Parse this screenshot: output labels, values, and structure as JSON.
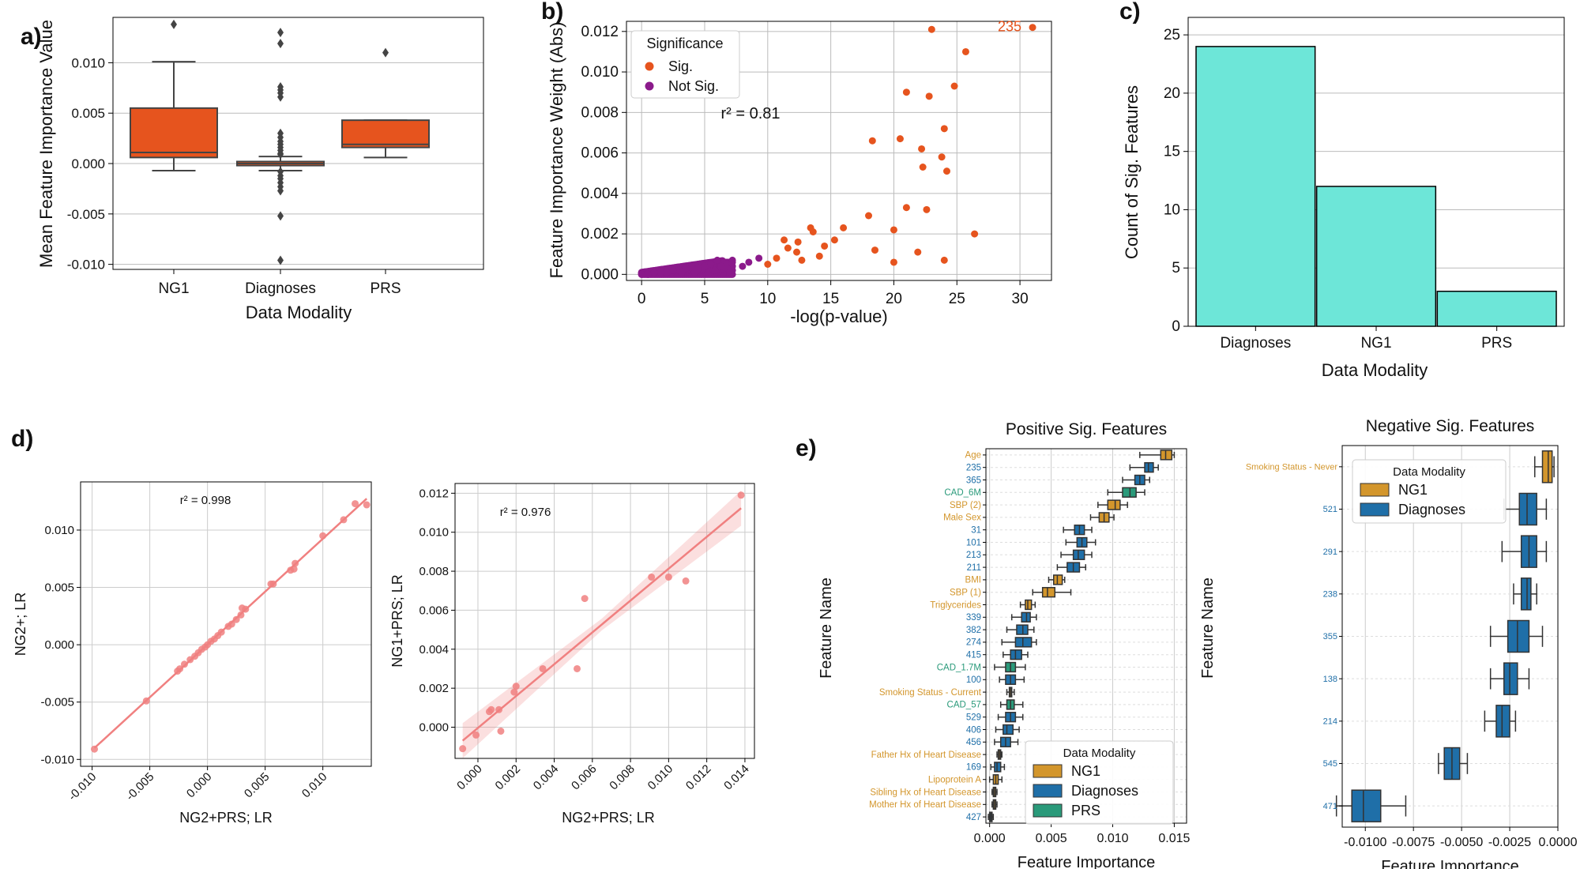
{
  "colors": {
    "orange": "#e6541e",
    "purple": "#8b1a8b",
    "teal": "#6de6d8",
    "salmon": "#f08080",
    "ng1": "#d3962c",
    "diagnoses": "#1f6fa8",
    "prs": "#2a9a7a",
    "grid": "#bbbbbb",
    "box_line": "#444444"
  },
  "chart_data": [
    {
      "panel": "a)",
      "type": "box",
      "xlabel": "Data Modality",
      "ylabel": "Mean Feature Importance Value",
      "categories": [
        "NG1",
        "Diagnoses",
        "PRS"
      ],
      "yticks": [
        -0.01,
        -0.005,
        0.0,
        0.005,
        0.01
      ],
      "ytick_labels": [
        "-0.010",
        "-0.005",
        "0.000",
        "0.005",
        "0.010"
      ],
      "ylim": [
        -0.0105,
        0.0145
      ],
      "boxes": [
        {
          "name": "NG1",
          "q1": 0.0006,
          "median": 0.0011,
          "q3": 0.0055,
          "whisker_low": -0.0007,
          "whisker_high": 0.0101,
          "outliers": [
            0.0138
          ]
        },
        {
          "name": "Diagnoses",
          "q1": -0.0002,
          "median": 0.0,
          "q3": 0.0002,
          "whisker_low": -0.0007,
          "whisker_high": 0.0007,
          "outliers": [
            0.013,
            0.0119,
            0.0076,
            0.0073,
            0.007,
            0.0066,
            0.003,
            0.0026,
            0.0022,
            0.0019,
            0.0016,
            0.0013,
            0.001,
            0.0009,
            -0.0008,
            -0.0012,
            -0.0015,
            -0.0019,
            -0.0023,
            -0.0027,
            -0.0052,
            -0.0096
          ]
        },
        {
          "name": "PRS",
          "q1": 0.0016,
          "median": 0.0019,
          "q3": 0.0043,
          "whisker_low": 0.0006,
          "whisker_high": 0.0043,
          "outliers": [
            0.011
          ]
        }
      ]
    },
    {
      "panel": "b)",
      "type": "scatter",
      "xlabel": "-log(p-value)",
      "ylabel": "Feature Importance Weight (Abs)",
      "xticks": [
        0,
        5,
        10,
        15,
        20,
        25,
        30
      ],
      "xtick_labels": [
        "0",
        "5",
        "10",
        "15",
        "20",
        "25",
        "30"
      ],
      "yticks": [
        0,
        0.002,
        0.004,
        0.006,
        0.008,
        0.01,
        0.012
      ],
      "ytick_labels": [
        "0.000",
        "0.002",
        "0.004",
        "0.006",
        "0.008",
        "0.010",
        "0.012"
      ],
      "xlim": [
        -1.2,
        32.5
      ],
      "ylim": [
        -0.0003,
        0.0125
      ],
      "legend_title": "Significance",
      "legend": [
        "Sig.",
        "Not Sig."
      ],
      "annotation": "r² = 0.81",
      "point_label": "235",
      "sig_points": [
        [
          31.0,
          0.0122
        ],
        [
          23.0,
          0.0121
        ],
        [
          25.7,
          0.011
        ],
        [
          24.8,
          0.0093
        ],
        [
          21.0,
          0.009
        ],
        [
          22.8,
          0.0088
        ],
        [
          24.0,
          0.0072
        ],
        [
          18.3,
          0.0066
        ],
        [
          20.5,
          0.0067
        ],
        [
          22.2,
          0.0062
        ],
        [
          23.8,
          0.0058
        ],
        [
          22.3,
          0.0053
        ],
        [
          24.2,
          0.0051
        ],
        [
          21.0,
          0.0033
        ],
        [
          22.6,
          0.0032
        ],
        [
          18.0,
          0.0029
        ],
        [
          20.0,
          0.0022
        ],
        [
          26.4,
          0.002
        ],
        [
          16.0,
          0.0023
        ],
        [
          13.4,
          0.0023
        ],
        [
          13.6,
          0.0021
        ],
        [
          15.3,
          0.0017
        ],
        [
          11.3,
          0.0017
        ],
        [
          12.4,
          0.0016
        ],
        [
          14.5,
          0.0014
        ],
        [
          11.6,
          0.0013
        ],
        [
          18.5,
          0.0012
        ],
        [
          21.9,
          0.0011
        ],
        [
          12.3,
          0.0011
        ],
        [
          14.1,
          0.0009
        ],
        [
          10.7,
          0.0008
        ],
        [
          12.7,
          0.0007
        ],
        [
          24.0,
          0.0007
        ],
        [
          20.0,
          0.0006
        ],
        [
          10.0,
          0.0005
        ]
      ],
      "nonsig_points": [
        [
          9.3,
          0.0008
        ],
        [
          8.5,
          0.0006
        ],
        [
          8.0,
          0.0004
        ],
        [
          7.2,
          0.0007
        ],
        [
          6.6,
          0.0006
        ],
        [
          6.0,
          0.0007
        ],
        [
          5.5,
          0.0005
        ],
        [
          5.0,
          0.0004
        ],
        [
          4.5,
          0.0003
        ],
        [
          4.0,
          0.0003
        ],
        [
          3.5,
          0.0003
        ],
        [
          3.0,
          0.0002
        ],
        [
          2.5,
          0.0002
        ],
        [
          2.0,
          0.0001
        ],
        [
          1.5,
          0.0001
        ],
        [
          1.0,
          0.0001
        ],
        [
          0.5,
          0.0
        ],
        [
          0.0,
          0.0
        ],
        [
          6.8,
          0.0003
        ],
        [
          7.0,
          0.0001
        ],
        [
          5.8,
          0.0002
        ],
        [
          6.3,
          0.0004
        ],
        [
          3.2,
          0.0001
        ],
        [
          4.2,
          0.0001
        ]
      ]
    },
    {
      "panel": "c)",
      "type": "bar",
      "xlabel": "Data Modality",
      "ylabel": "Count of Sig. Features",
      "categories": [
        "Diagnoses",
        "NG1",
        "PRS"
      ],
      "values": [
        24,
        12,
        3
      ],
      "yticks": [
        0,
        5,
        10,
        15,
        20,
        25
      ],
      "ylim": [
        0,
        26.5
      ]
    },
    {
      "panel": "d)",
      "type": "scatter",
      "xlabel": "NG2+PRS; LR",
      "ylabel": "NG2+; LR",
      "annotation": "r² = 0.998",
      "xticks": [
        -0.01,
        -0.005,
        0.0,
        0.005,
        0.01
      ],
      "xtick_labels": [
        "-0.010",
        "-0.005",
        "0.000",
        "0.005",
        "0.010"
      ],
      "yticks": [
        -0.01,
        -0.005,
        0.0,
        0.005,
        0.01
      ],
      "ytick_labels": [
        "-0.010",
        "-0.005",
        "0.000",
        "0.005",
        "0.010"
      ],
      "xlim": [
        -0.011,
        0.0142
      ],
      "ylim": [
        -0.0106,
        0.0142
      ],
      "points": [
        [
          -0.0098,
          -0.0091
        ],
        [
          -0.0053,
          -0.0049
        ],
        [
          -0.0026,
          -0.0023
        ],
        [
          -0.0024,
          -0.0021
        ],
        [
          -0.002,
          -0.0017
        ],
        [
          -0.0015,
          -0.0013
        ],
        [
          -0.0011,
          -0.001
        ],
        [
          -0.0008,
          -0.0007
        ],
        [
          -0.0005,
          -0.0004
        ],
        [
          -0.0002,
          -0.0002
        ],
        [
          0.0,
          0.0
        ],
        [
          0.0003,
          0.0003
        ],
        [
          0.0006,
          0.0005
        ],
        [
          0.0009,
          0.0008
        ],
        [
          0.0012,
          0.0011
        ],
        [
          0.0018,
          0.0016
        ],
        [
          0.0021,
          0.0018
        ],
        [
          0.0025,
          0.0022
        ],
        [
          0.0029,
          0.0026
        ],
        [
          0.003,
          0.0032
        ],
        [
          0.0033,
          0.0031
        ],
        [
          0.0055,
          0.0053
        ],
        [
          0.0057,
          0.0053
        ],
        [
          0.0072,
          0.0065
        ],
        [
          0.0075,
          0.0066
        ],
        [
          0.0076,
          0.0071
        ],
        [
          0.01,
          0.0095
        ],
        [
          0.0118,
          0.0109
        ],
        [
          0.0128,
          0.0123
        ],
        [
          0.0138,
          0.0122
        ]
      ]
    },
    {
      "panel": "d2",
      "type": "scatter",
      "xlabel": "NG2+PRS; LR",
      "ylabel": "NG1+PRS; LR",
      "annotation": "r² = 0.976",
      "xticks": [
        0.0,
        0.002,
        0.004,
        0.006,
        0.008,
        0.01,
        0.012,
        0.014
      ],
      "xtick_labels": [
        "0.000",
        "0.002",
        "0.004",
        "0.006",
        "0.008",
        "0.010",
        "0.012",
        "0.014"
      ],
      "yticks": [
        0.0,
        0.002,
        0.004,
        0.006,
        0.008,
        0.01,
        0.012
      ],
      "ytick_labels": [
        "0.000",
        "0.002",
        "0.004",
        "0.006",
        "0.008",
        "0.010",
        "0.012"
      ],
      "xlim": [
        -0.0012,
        0.0145
      ],
      "ylim": [
        -0.0016,
        0.0125
      ],
      "points": [
        [
          -0.0008,
          -0.0011
        ],
        [
          -0.0001,
          -0.0004
        ],
        [
          0.0006,
          0.0008
        ],
        [
          0.0007,
          0.0009
        ],
        [
          0.0011,
          0.0009
        ],
        [
          0.0019,
          0.0018
        ],
        [
          0.002,
          0.0021
        ],
        [
          0.0034,
          0.003
        ],
        [
          0.0052,
          0.003
        ],
        [
          0.0056,
          0.0066
        ],
        [
          0.0091,
          0.0077
        ],
        [
          0.01,
          0.0077
        ],
        [
          0.0109,
          0.0075
        ],
        [
          0.0138,
          0.0119
        ],
        [
          0.0012,
          -0.0002
        ]
      ]
    },
    {
      "panel": "e)",
      "type": "box",
      "title": "Positive Sig. Features",
      "xlabel": "Feature Importance",
      "ylabel": "Feature Name",
      "xticks": [
        0.0,
        0.005,
        0.01,
        0.015
      ],
      "xtick_labels": [
        "0.000",
        "0.005",
        "0.010",
        "0.015"
      ],
      "xlim": [
        -0.0003,
        0.016
      ],
      "legend_title": "Data Modality",
      "legend": [
        "NG1",
        "Diagnoses",
        "PRS"
      ],
      "features": [
        {
          "name": "Age",
          "mod": "NG1",
          "q1": 0.0139,
          "med": 0.0143,
          "q3": 0.0148,
          "lo": 0.0122,
          "hi": 0.015
        },
        {
          "name": "235",
          "mod": "Diagnoses",
          "q1": 0.0126,
          "med": 0.0129,
          "q3": 0.0133,
          "lo": 0.0114,
          "hi": 0.0137
        },
        {
          "name": "365",
          "mod": "Diagnoses",
          "q1": 0.0118,
          "med": 0.0122,
          "q3": 0.0126,
          "lo": 0.0108,
          "hi": 0.013
        },
        {
          "name": "CAD_6M",
          "mod": "PRS",
          "q1": 0.0108,
          "med": 0.0114,
          "q3": 0.0119,
          "lo": 0.0096,
          "hi": 0.0126
        },
        {
          "name": "SBP (2)",
          "mod": "NG1",
          "q1": 0.0096,
          "med": 0.0102,
          "q3": 0.0106,
          "lo": 0.0088,
          "hi": 0.0112
        },
        {
          "name": "Male Sex",
          "mod": "NG1",
          "q1": 0.0089,
          "med": 0.0093,
          "q3": 0.0097,
          "lo": 0.0082,
          "hi": 0.0101
        },
        {
          "name": "31",
          "mod": "Diagnoses",
          "q1": 0.0069,
          "med": 0.0073,
          "q3": 0.0077,
          "lo": 0.006,
          "hi": 0.0083
        },
        {
          "name": "101",
          "mod": "Diagnoses",
          "q1": 0.0071,
          "med": 0.0075,
          "q3": 0.0079,
          "lo": 0.0062,
          "hi": 0.0086
        },
        {
          "name": "213",
          "mod": "Diagnoses",
          "q1": 0.0068,
          "med": 0.0072,
          "q3": 0.0077,
          "lo": 0.0058,
          "hi": 0.0083
        },
        {
          "name": "211",
          "mod": "Diagnoses",
          "q1": 0.0063,
          "med": 0.0068,
          "q3": 0.0073,
          "lo": 0.0055,
          "hi": 0.0078
        },
        {
          "name": "BMI",
          "mod": "NG1",
          "q1": 0.0052,
          "med": 0.0055,
          "q3": 0.0059,
          "lo": 0.0048,
          "hi": 0.0061
        },
        {
          "name": "SBP (1)",
          "mod": "NG1",
          "q1": 0.0043,
          "med": 0.0047,
          "q3": 0.0053,
          "lo": 0.0035,
          "hi": 0.0066
        },
        {
          "name": "Triglycerides",
          "mod": "NG1",
          "q1": 0.0029,
          "med": 0.0031,
          "q3": 0.0034,
          "lo": 0.0025,
          "hi": 0.0037
        },
        {
          "name": "339",
          "mod": "Diagnoses",
          "q1": 0.0026,
          "med": 0.003,
          "q3": 0.0033,
          "lo": 0.0018,
          "hi": 0.0038
        },
        {
          "name": "382",
          "mod": "Diagnoses",
          "q1": 0.0022,
          "med": 0.0027,
          "q3": 0.0031,
          "lo": 0.0014,
          "hi": 0.0036
        },
        {
          "name": "274",
          "mod": "Diagnoses",
          "q1": 0.0021,
          "med": 0.0027,
          "q3": 0.0034,
          "lo": 0.001,
          "hi": 0.0038
        },
        {
          "name": "415",
          "mod": "Diagnoses",
          "q1": 0.0017,
          "med": 0.0021,
          "q3": 0.0026,
          "lo": 0.0011,
          "hi": 0.0031
        },
        {
          "name": "CAD_1.7M",
          "mod": "PRS",
          "q1": 0.0013,
          "med": 0.0017,
          "q3": 0.0021,
          "lo": 0.0004,
          "hi": 0.0029
        },
        {
          "name": "100",
          "mod": "Diagnoses",
          "q1": 0.0013,
          "med": 0.0017,
          "q3": 0.0021,
          "lo": 0.0008,
          "hi": 0.0028
        },
        {
          "name": "Smoking Status - Current",
          "mod": "NG1",
          "q1": 0.0016,
          "med": 0.0017,
          "q3": 0.0018,
          "lo": 0.0014,
          "hi": 0.002
        },
        {
          "name": "CAD_57",
          "mod": "PRS",
          "q1": 0.0014,
          "med": 0.0017,
          "q3": 0.002,
          "lo": 0.0009,
          "hi": 0.0027
        },
        {
          "name": "529",
          "mod": "Diagnoses",
          "q1": 0.0013,
          "med": 0.0017,
          "q3": 0.0021,
          "lo": 0.0007,
          "hi": 0.0027
        },
        {
          "name": "406",
          "mod": "Diagnoses",
          "q1": 0.0011,
          "med": 0.0014,
          "q3": 0.0019,
          "lo": 0.0005,
          "hi": 0.0024
        },
        {
          "name": "456",
          "mod": "Diagnoses",
          "q1": 0.0009,
          "med": 0.0013,
          "q3": 0.0017,
          "lo": 0.0004,
          "hi": 0.0023
        },
        {
          "name": "Father Hx of Heart Disease",
          "mod": "NG1",
          "q1": 0.0007,
          "med": 0.0008,
          "q3": 0.0009,
          "lo": 0.0006,
          "hi": 0.001
        },
        {
          "name": "169",
          "mod": "Diagnoses",
          "q1": 0.0004,
          "med": 0.0006,
          "q3": 0.0009,
          "lo": 0.0001,
          "hi": 0.0012
        },
        {
          "name": "Lipoprotein A",
          "mod": "NG1",
          "q1": 0.0003,
          "med": 0.0005,
          "q3": 0.0007,
          "lo": 0.0,
          "hi": 0.001
        },
        {
          "name": "Sibling Hx of Heart Disease",
          "mod": "NG1",
          "q1": 0.0003,
          "med": 0.0004,
          "q3": 0.0005,
          "lo": 0.0002,
          "hi": 0.0006
        },
        {
          "name": "Mother Hx of Heart Disease",
          "mod": "NG1",
          "q1": 0.0003,
          "med": 0.0004,
          "q3": 0.0005,
          "lo": 0.0002,
          "hi": 0.0006
        },
        {
          "name": "427",
          "mod": "Diagnoses",
          "q1": 0.0,
          "med": 0.0001,
          "q3": 0.0002,
          "lo": -0.0001,
          "hi": 0.0003
        }
      ]
    },
    {
      "panel": "e2",
      "type": "box",
      "title": "Negative Sig. Features",
      "xlabel": "Feature Importance",
      "ylabel": "Feature Name",
      "xticks": [
        -0.01,
        -0.0075,
        -0.005,
        -0.0025,
        0.0
      ],
      "xtick_labels": [
        "-0.0100",
        "-0.0075",
        "-0.0050",
        "-0.0025",
        "0.0000"
      ],
      "xlim": [
        -0.0112,
        0.0
      ],
      "legend_title": "Data Modality",
      "legend": [
        "NG1",
        "Diagnoses"
      ],
      "features": [
        {
          "name": "Smoking Status - Never",
          "mod": "NG1",
          "q1": -0.0008,
          "med": -0.0005,
          "q3": -0.0003,
          "lo": -0.0012,
          "hi": -0.0002
        },
        {
          "name": "521",
          "mod": "Diagnoses",
          "q1": -0.002,
          "med": -0.0016,
          "q3": -0.0011,
          "lo": -0.0028,
          "hi": -0.0006
        },
        {
          "name": "291",
          "mod": "Diagnoses",
          "q1": -0.0019,
          "med": -0.0015,
          "q3": -0.0011,
          "lo": -0.0029,
          "hi": -0.0006
        },
        {
          "name": "238",
          "mod": "Diagnoses",
          "q1": -0.0019,
          "med": -0.0016,
          "q3": -0.0014,
          "lo": -0.0023,
          "hi": -0.0011
        },
        {
          "name": "355",
          "mod": "Diagnoses",
          "q1": -0.0026,
          "med": -0.0021,
          "q3": -0.0015,
          "lo": -0.0035,
          "hi": -0.0008
        },
        {
          "name": "138",
          "mod": "Diagnoses",
          "q1": -0.0028,
          "med": -0.0025,
          "q3": -0.0021,
          "lo": -0.0035,
          "hi": -0.0015
        },
        {
          "name": "214",
          "mod": "Diagnoses",
          "q1": -0.0032,
          "med": -0.0029,
          "q3": -0.0025,
          "lo": -0.0038,
          "hi": -0.0022
        },
        {
          "name": "545",
          "mod": "Diagnoses",
          "q1": -0.0059,
          "med": -0.0055,
          "q3": -0.0051,
          "lo": -0.0062,
          "hi": -0.0047
        },
        {
          "name": "471",
          "mod": "Diagnoses",
          "q1": -0.0107,
          "med": -0.0101,
          "q3": -0.0092,
          "lo": -0.0115,
          "hi": -0.0079
        }
      ]
    }
  ]
}
